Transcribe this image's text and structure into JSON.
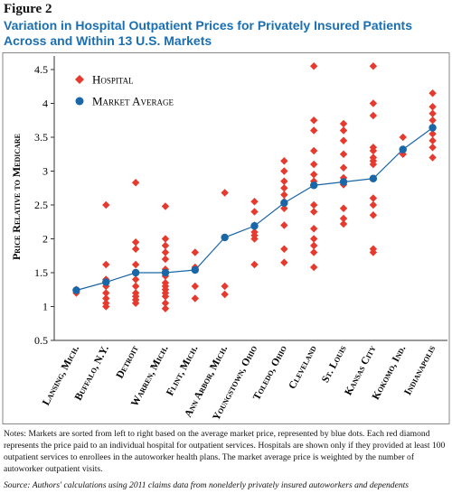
{
  "figure_label": "Figure 2",
  "chart_data": {
    "type": "line",
    "title": "Variation in Hospital Outpatient Prices for Privately Insured Patients Across and Within 13 U.S. Markets",
    "ylabel": "Price Relative to Medicare",
    "categories": [
      "Lansing, Mich.",
      "Buffalo, N.Y.",
      "Detroit",
      "Warren, Mich.",
      "Flint, Mich.",
      "Ann Arbor, Mich.",
      "Youngstown, Ohio",
      "Toledo, Ohio",
      "Cleveland",
      "St. Louis",
      "Kansas City",
      "Kokomo, Ind.",
      "Indianapolis"
    ],
    "series": [
      {
        "name": "Hospital",
        "color": "#e63a2e",
        "marker": "diamond",
        "values": [
          [
            1.2,
            1.25
          ],
          [
            2.5,
            1.62,
            1.4,
            1.3,
            1.2,
            1.12,
            1.05,
            1.0
          ],
          [
            2.83,
            1.95,
            1.85,
            1.62,
            1.5,
            1.4,
            1.3,
            1.2,
            1.15,
            1.1,
            1.05
          ],
          [
            2.48,
            2.0,
            1.9,
            1.8,
            1.7,
            1.55,
            1.45,
            1.35,
            1.3,
            1.25,
            1.2,
            1.15,
            1.05,
            0.97
          ],
          [
            1.8,
            1.58,
            1.3,
            1.12
          ],
          [
            2.68,
            1.3,
            1.18
          ],
          [
            2.55,
            2.4,
            2.2,
            2.1,
            2.05,
            2.0,
            1.62
          ],
          [
            3.15,
            3.0,
            2.85,
            2.75,
            2.65,
            2.55,
            2.45,
            2.2,
            1.85,
            1.65
          ],
          [
            4.55,
            3.75,
            3.6,
            3.3,
            3.1,
            2.95,
            2.85,
            2.5,
            2.4,
            2.15,
            2.0,
            1.9,
            1.8,
            1.58
          ],
          [
            3.7,
            3.6,
            3.45,
            3.25,
            3.05,
            2.9,
            2.85,
            2.8,
            2.45,
            2.3,
            2.22
          ],
          [
            4.55,
            4.0,
            3.82,
            3.35,
            3.3,
            3.2,
            3.15,
            3.1,
            2.6,
            2.5,
            2.35,
            1.85,
            1.8
          ],
          [
            3.5,
            3.3,
            3.25
          ],
          [
            4.15,
            3.95,
            3.85,
            3.75,
            3.65,
            3.55,
            3.45,
            3.35,
            3.2
          ]
        ]
      },
      {
        "name": "Market Average",
        "color": "#1a67a8",
        "marker": "circle",
        "values": [
          1.24,
          1.36,
          1.5,
          1.5,
          1.54,
          2.02,
          2.19,
          2.53,
          2.79,
          2.84,
          2.89,
          3.32,
          3.64
        ]
      }
    ],
    "ylim": [
      0.5,
      4.7
    ],
    "yticks": [
      0.5,
      1,
      1.5,
      2,
      2.5,
      3,
      3.5,
      4,
      4.5
    ],
    "grid": false,
    "legend": "upper left"
  },
  "notes": "Notes: Markets are sorted from left to right based on the average market  price, represented by blue dots. Each red diamond represents the price paid to an individual hospital for outpatient services. Hospitals are shown only if they provided at least 100 outpatient services to enrollees in the autoworker health plans. The market average price is weighted by the number of autoworker outpatient visits.",
  "source": "Source: Authors' calculations using 2011 claims data from nonelderly privately insured autoworkers and dependents"
}
